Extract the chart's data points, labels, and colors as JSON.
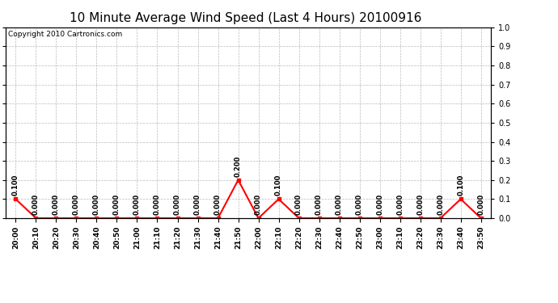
{
  "title": "10 Minute Average Wind Speed (Last 4 Hours) 20100916",
  "copyright_text": "Copyright 2010 Cartronics.com",
  "x_labels": [
    "20:00",
    "20:10",
    "20:20",
    "20:30",
    "20:40",
    "20:50",
    "21:00",
    "21:10",
    "21:20",
    "21:30",
    "21:40",
    "21:50",
    "22:00",
    "22:10",
    "22:20",
    "22:30",
    "22:40",
    "22:50",
    "23:00",
    "23:10",
    "23:20",
    "23:30",
    "23:40",
    "23:50"
  ],
  "y_values": [
    0.1,
    0.0,
    0.0,
    0.0,
    0.0,
    0.0,
    0.0,
    0.0,
    0.0,
    0.0,
    0.0,
    0.2,
    0.0,
    0.1,
    0.0,
    0.0,
    0.0,
    0.0,
    0.0,
    0.0,
    0.0,
    0.0,
    0.1,
    0.0
  ],
  "line_color": "#ff0000",
  "marker_color": "#ff0000",
  "background_color": "#ffffff",
  "plot_bg_color": "#ffffff",
  "grid_color": "#bbbbbb",
  "ylim": [
    0.0,
    1.0
  ],
  "yticks": [
    0.0,
    0.1,
    0.2,
    0.3,
    0.4,
    0.5,
    0.6,
    0.7,
    0.8,
    0.9,
    1.0
  ],
  "title_fontsize": 11,
  "annotation_fontsize": 6,
  "xlabel_fontsize": 6.5,
  "ylabel_fontsize": 7,
  "copyright_fontsize": 6.5
}
